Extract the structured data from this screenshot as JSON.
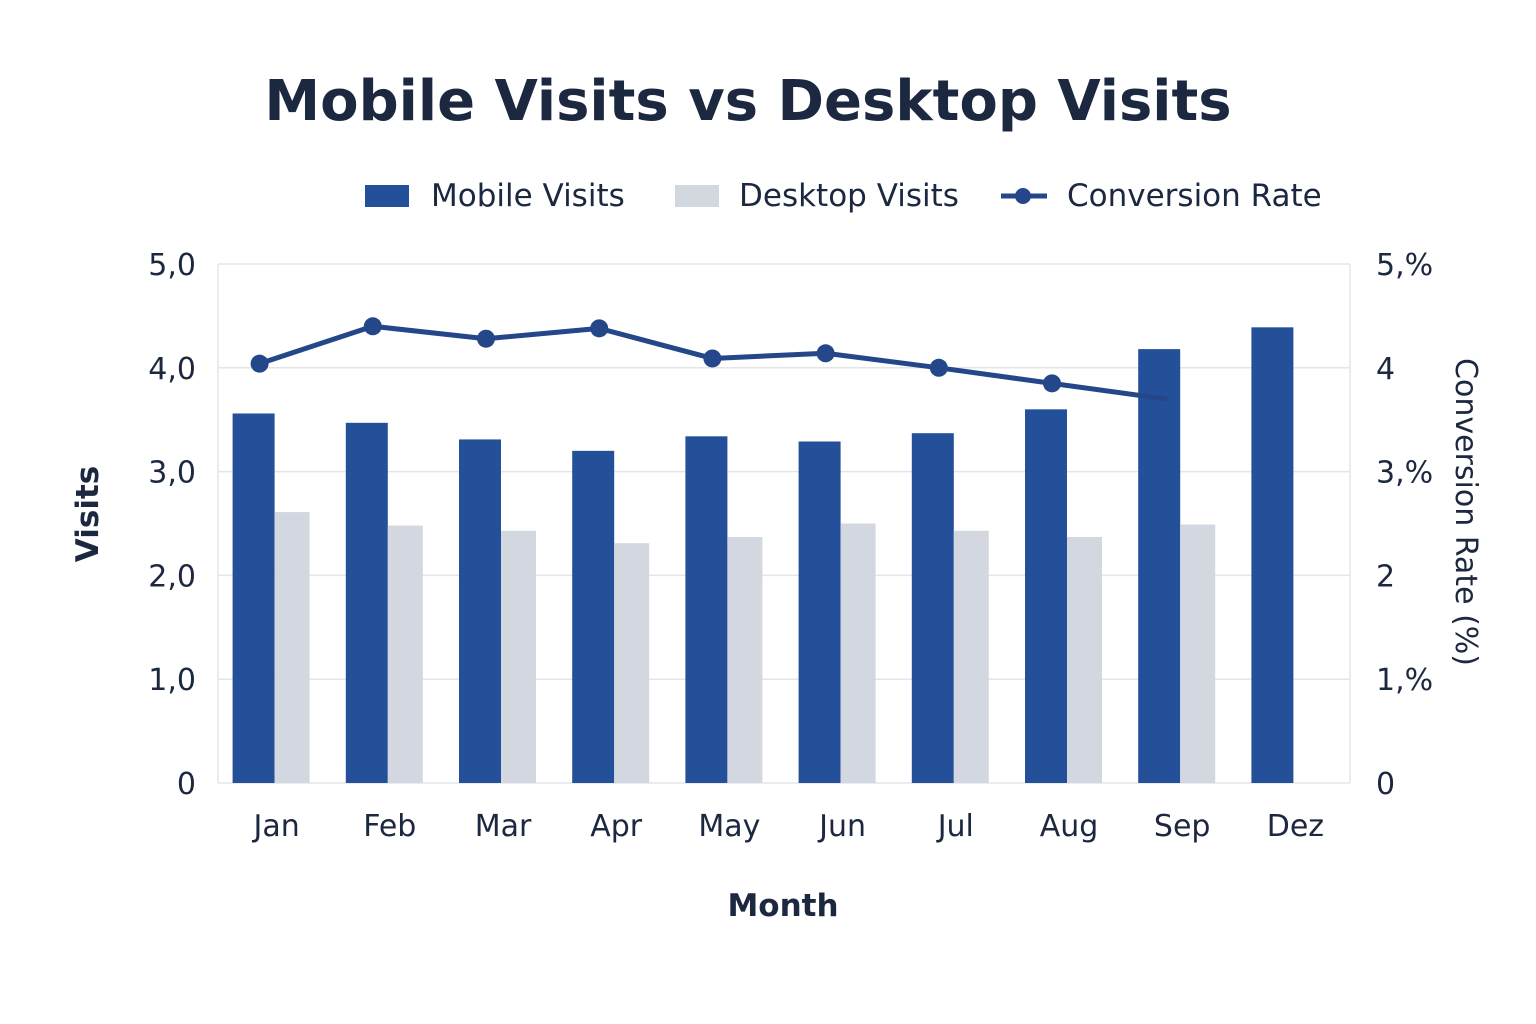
{
  "chart_data": {
    "type": "bar",
    "title": "Mobile Visits vs Desktop Visits",
    "xlabel": "Month",
    "ylabel": "Visits",
    "y2label": "Conversion Rate (%)",
    "categories": [
      "Jan",
      "Feb",
      "Mar",
      "Apr",
      "May",
      "Jun",
      "Jul",
      "Aug",
      "Sep",
      "Dez"
    ],
    "ylim": [
      0,
      5
    ],
    "y2lim": [
      0,
      5
    ],
    "yticks": [
      "0",
      "1,0",
      "2,0",
      "3,0",
      "4,0",
      "5,0"
    ],
    "y2ticks": [
      "0",
      "1,%",
      "2",
      "3,%",
      "4",
      "5,%"
    ],
    "grid": true,
    "legend_position": "top",
    "series": [
      {
        "name": "Mobile Visits",
        "kind": "bar",
        "axis": "left",
        "values": [
          3.56,
          3.47,
          3.31,
          3.2,
          3.34,
          3.29,
          3.37,
          3.6,
          4.18,
          4.39
        ]
      },
      {
        "name": "Desktop Visits",
        "kind": "bar",
        "axis": "left",
        "values": [
          2.61,
          2.48,
          2.43,
          2.31,
          2.37,
          2.5,
          2.43,
          2.37,
          2.49,
          null
        ]
      },
      {
        "name": "Conversion Rate",
        "kind": "line",
        "axis": "right",
        "values": [
          4.04,
          4.4,
          4.28,
          4.38,
          4.09,
          4.14,
          4.0,
          3.85,
          3.7,
          null
        ],
        "markers": [
          true,
          true,
          true,
          true,
          true,
          true,
          true,
          true,
          false,
          false
        ]
      }
    ],
    "colors": {
      "mobile": "#24509a",
      "desktop": "#d3d7e0",
      "line": "#24478a",
      "text": "#1b2840",
      "grid": "#e3e5ea"
    }
  }
}
